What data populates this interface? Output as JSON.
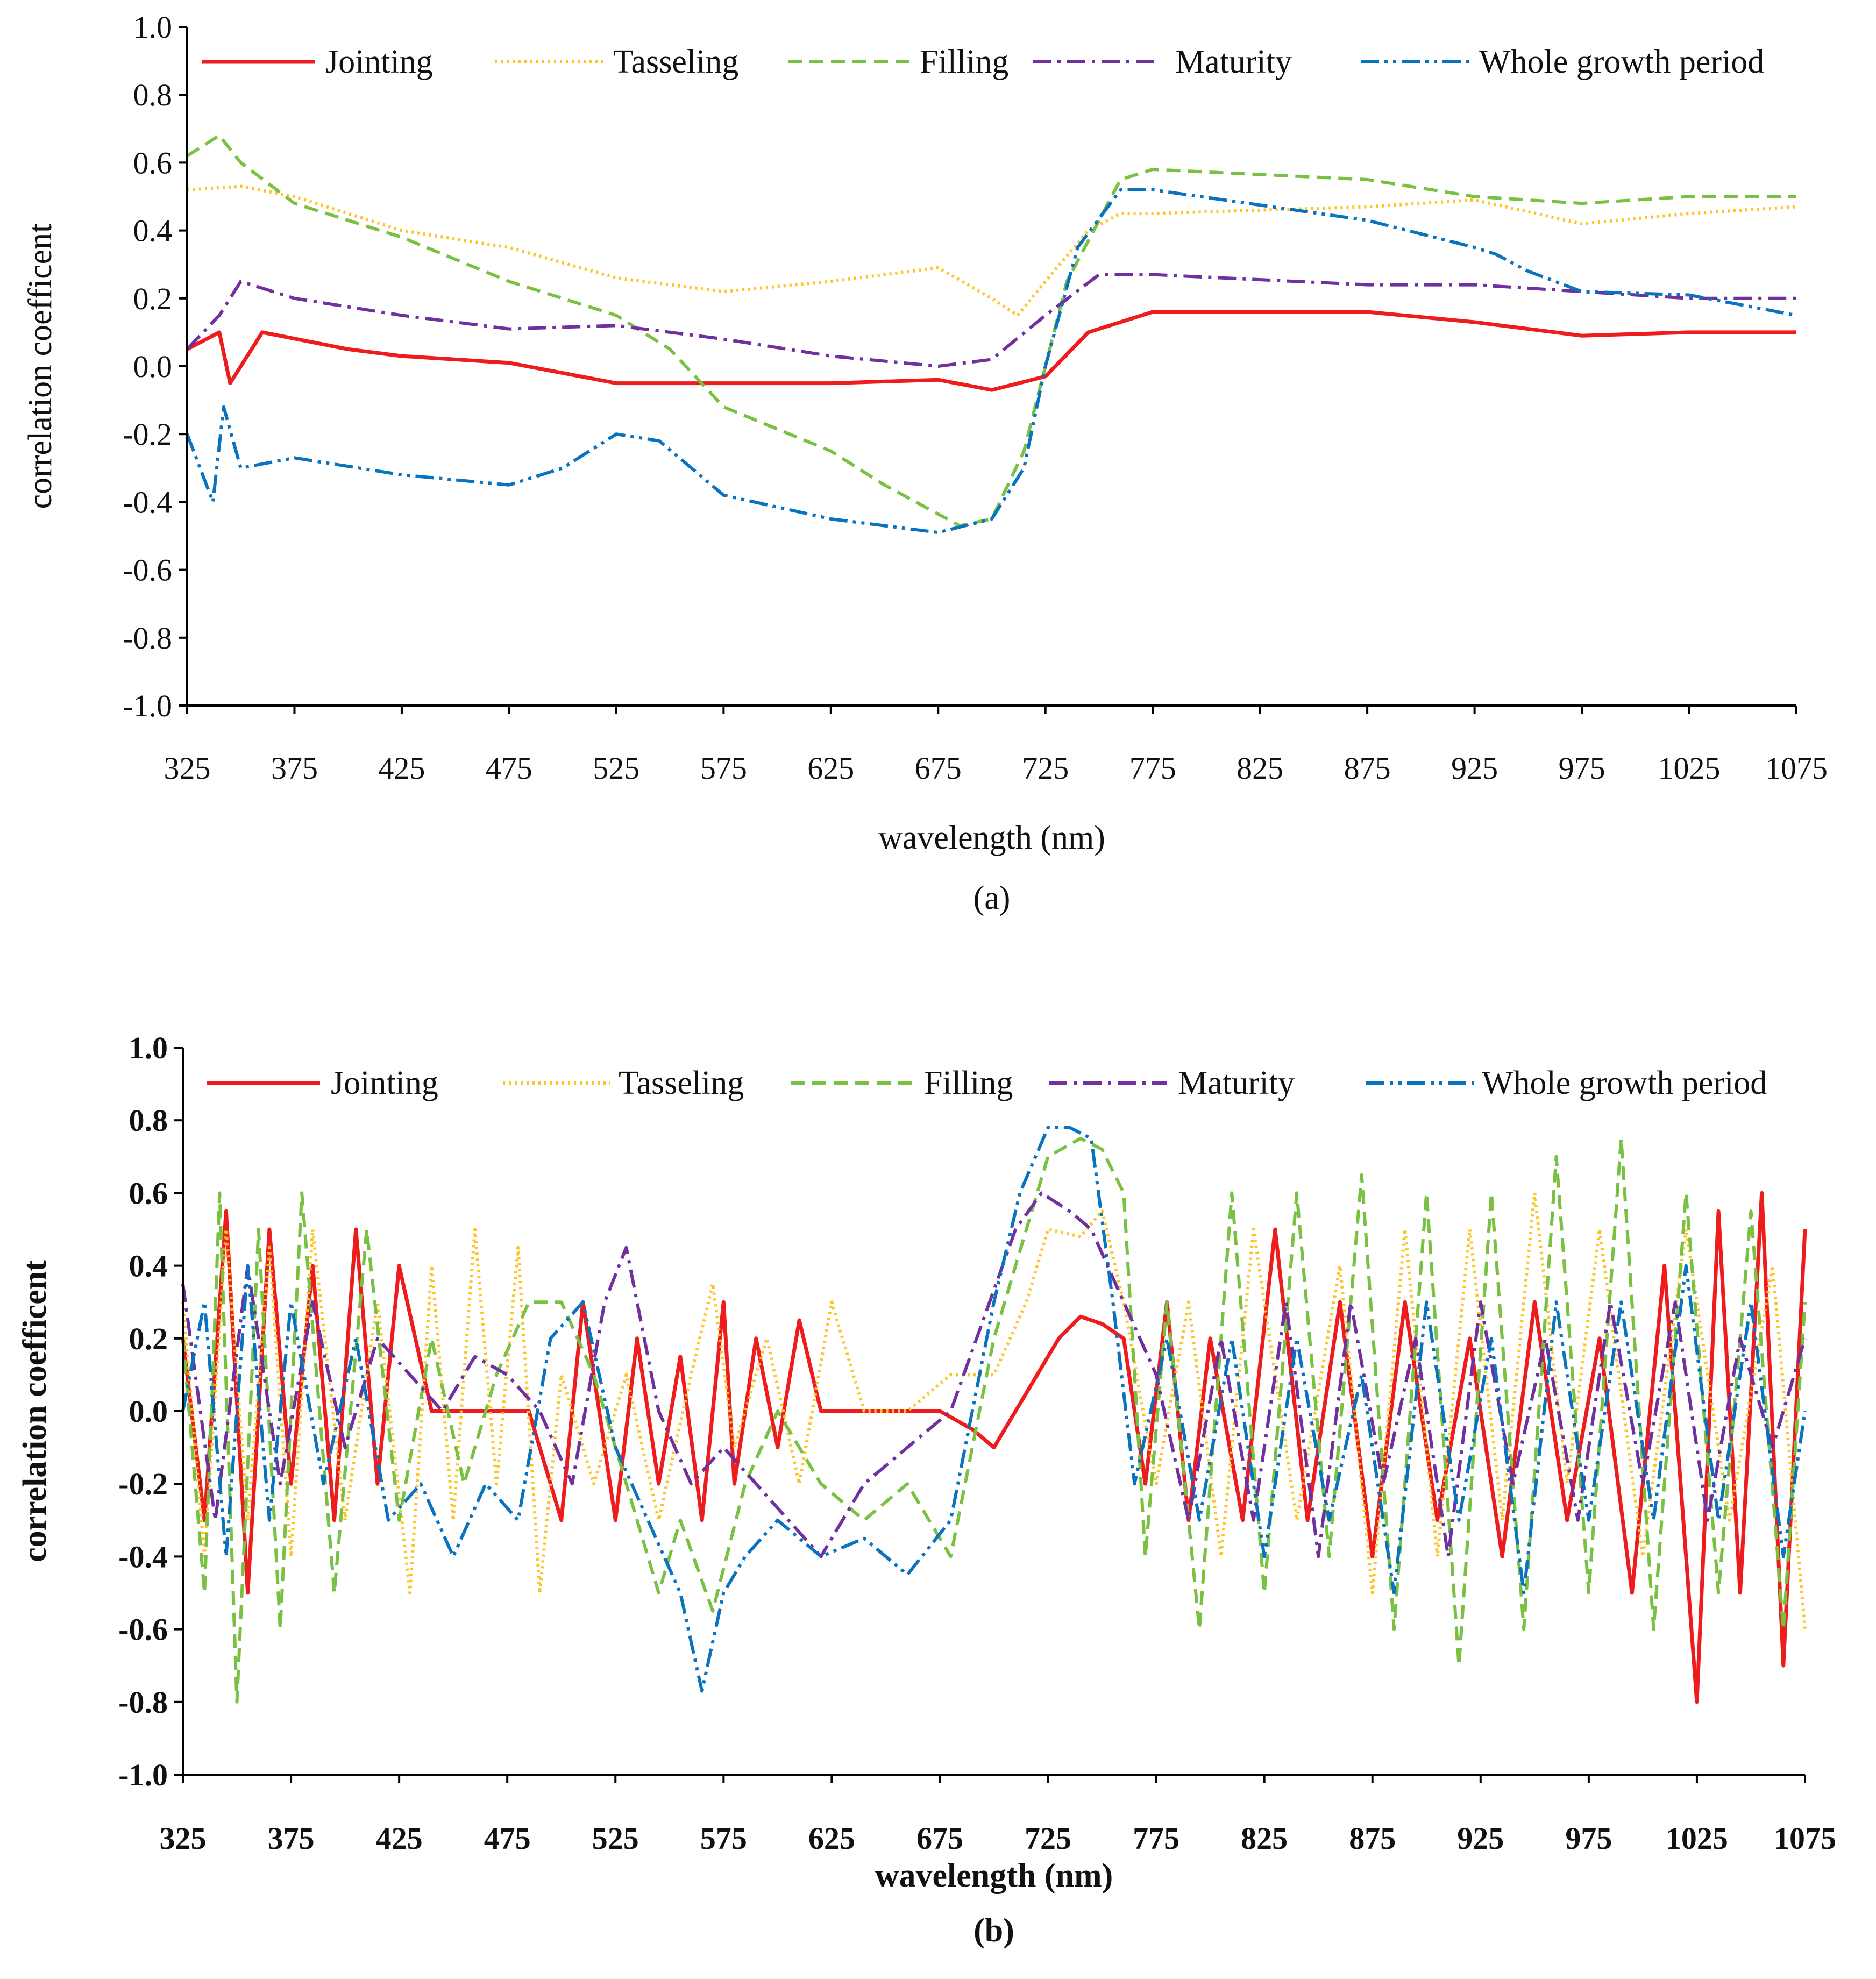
{
  "colors": {
    "jointing": "#ee1c1c",
    "tasseling": "#fdc422",
    "filling": "#7ac143",
    "maturity": "#7030a0",
    "whole": "#0a73c0",
    "axis": "#000000"
  },
  "chart_data": [
    {
      "id": "a",
      "type": "line",
      "caption": "(a)",
      "xlabel": "wavelength (nm)",
      "ylabel": "correlation  coefficent",
      "xlim": [
        325,
        1075
      ],
      "ylim": [
        -1.0,
        1.0
      ],
      "xticks": [
        "325",
        "375",
        "425",
        "475",
        "525",
        "575",
        "625",
        "675",
        "725",
        "775",
        "825",
        "875",
        "925",
        "975",
        "1025",
        "1075"
      ],
      "yticks": [
        "1.0",
        "0.8",
        "0.6",
        "0.4",
        "0.2",
        "0.0",
        "-0.2",
        "-0.4",
        "-0.6",
        "-0.8",
        "-1.0"
      ],
      "legend": [
        "Jointing",
        "Tasseling",
        "Filling",
        "Maturity",
        "Whole growth period"
      ],
      "series": [
        {
          "key": "jointing",
          "name": "Jointing",
          "x": [
            325,
            340,
            345,
            360,
            400,
            425,
            475,
            500,
            525,
            575,
            625,
            675,
            700,
            725,
            745,
            775,
            875,
            925,
            975,
            1025,
            1075
          ],
          "y": [
            0.05,
            0.1,
            -0.05,
            0.1,
            0.05,
            0.03,
            0.01,
            -0.02,
            -0.05,
            -0.05,
            -0.05,
            -0.04,
            -0.07,
            -0.03,
            0.1,
            0.16,
            0.16,
            0.13,
            0.09,
            0.1,
            0.1
          ]
        },
        {
          "key": "tasseling",
          "name": "Tasseling",
          "x": [
            325,
            350,
            375,
            425,
            475,
            525,
            575,
            625,
            675,
            700,
            712,
            725,
            745,
            760,
            775,
            875,
            925,
            975,
            1025,
            1075
          ],
          "y": [
            0.52,
            0.53,
            0.5,
            0.4,
            0.35,
            0.26,
            0.22,
            0.25,
            0.29,
            0.2,
            0.15,
            0.25,
            0.4,
            0.45,
            0.45,
            0.47,
            0.49,
            0.42,
            0.45,
            0.47
          ]
        },
        {
          "key": "filling",
          "name": "Filling",
          "x": [
            325,
            340,
            350,
            375,
            425,
            475,
            525,
            550,
            575,
            625,
            650,
            685,
            700,
            715,
            735,
            760,
            775,
            875,
            925,
            975,
            1025,
            1075
          ],
          "y": [
            0.62,
            0.68,
            0.6,
            0.48,
            0.38,
            0.25,
            0.15,
            0.05,
            -0.12,
            -0.25,
            -0.35,
            -0.47,
            -0.45,
            -0.25,
            0.25,
            0.55,
            0.58,
            0.55,
            0.5,
            0.48,
            0.5,
            0.5
          ]
        },
        {
          "key": "maturity",
          "name": "Maturity",
          "x": [
            325,
            340,
            350,
            375,
            425,
            475,
            525,
            575,
            625,
            675,
            700,
            725,
            750,
            775,
            875,
            925,
            975,
            1025,
            1075
          ],
          "y": [
            0.05,
            0.15,
            0.25,
            0.2,
            0.15,
            0.11,
            0.12,
            0.08,
            0.03,
            0.0,
            0.02,
            0.15,
            0.27,
            0.27,
            0.24,
            0.24,
            0.22,
            0.2,
            0.2
          ]
        },
        {
          "key": "whole",
          "name": "Whole growth period",
          "x": [
            325,
            337,
            342,
            350,
            375,
            425,
            475,
            500,
            525,
            545,
            575,
            625,
            675,
            700,
            715,
            725,
            740,
            760,
            775,
            875,
            925,
            935,
            950,
            975,
            1025,
            1075
          ],
          "y": [
            -0.2,
            -0.4,
            -0.12,
            -0.3,
            -0.27,
            -0.32,
            -0.35,
            -0.3,
            -0.2,
            -0.22,
            -0.38,
            -0.45,
            -0.49,
            -0.45,
            -0.3,
            0.0,
            0.35,
            0.52,
            0.52,
            0.43,
            0.35,
            0.33,
            0.28,
            0.22,
            0.21,
            0.15
          ]
        }
      ]
    },
    {
      "id": "b",
      "type": "line",
      "caption": "(b)",
      "xlabel": "wavelength (nm)",
      "ylabel": "correlation  coefficent",
      "xlim": [
        325,
        1075
      ],
      "ylim": [
        -1.0,
        1.0
      ],
      "xticks": [
        "325",
        "375",
        "425",
        "475",
        "525",
        "575",
        "625",
        "675",
        "725",
        "775",
        "825",
        "875",
        "925",
        "975",
        "1025",
        "1075"
      ],
      "yticks": [
        "1.0",
        "0.8",
        "0.6",
        "0.4",
        "0.2",
        "0.0",
        "-0.2",
        "-0.4",
        "-0.6",
        "-0.8",
        "-1.0"
      ],
      "legend": [
        "Jointing",
        "Tasseling",
        "Filling",
        "Maturity",
        "Whole growth period"
      ],
      "series": [
        {
          "key": "jointing",
          "name": "Jointing",
          "x": [
            325,
            335,
            345,
            355,
            365,
            375,
            385,
            395,
            405,
            415,
            425,
            440,
            455,
            470,
            485,
            500,
            510,
            525,
            535,
            545,
            555,
            565,
            575,
            580,
            590,
            600,
            610,
            620,
            640,
            660,
            675,
            690,
            700,
            710,
            720,
            730,
            740,
            750,
            760,
            770,
            780,
            790,
            800,
            815,
            830,
            845,
            860,
            875,
            890,
            905,
            920,
            935,
            950,
            965,
            980,
            995,
            1010,
            1025,
            1035,
            1045,
            1055,
            1065,
            1075
          ],
          "y": [
            0.2,
            -0.3,
            0.55,
            -0.5,
            0.5,
            -0.2,
            0.4,
            -0.3,
            0.5,
            -0.2,
            0.4,
            0.0,
            0.0,
            0.0,
            0.0,
            -0.3,
            0.3,
            -0.3,
            0.2,
            -0.2,
            0.15,
            -0.3,
            0.3,
            -0.2,
            0.2,
            -0.1,
            0.25,
            0.0,
            0.0,
            0.0,
            0.0,
            -0.05,
            -0.1,
            0.0,
            0.1,
            0.2,
            0.26,
            0.24,
            0.2,
            -0.2,
            0.3,
            -0.3,
            0.2,
            -0.3,
            0.5,
            -0.3,
            0.3,
            -0.4,
            0.3,
            -0.3,
            0.2,
            -0.4,
            0.3,
            -0.3,
            0.2,
            -0.5,
            0.4,
            -0.8,
            0.55,
            -0.5,
            0.6,
            -0.7,
            0.5
          ]
        },
        {
          "key": "tasseling",
          "name": "Tasseling",
          "x": [
            325,
            335,
            345,
            355,
            365,
            375,
            385,
            400,
            415,
            430,
            440,
            450,
            460,
            470,
            480,
            490,
            500,
            515,
            530,
            545,
            560,
            570,
            580,
            595,
            610,
            625,
            640,
            660,
            680,
            700,
            715,
            725,
            740,
            750,
            760,
            775,
            790,
            805,
            820,
            840,
            860,
            875,
            890,
            905,
            920,
            935,
            950,
            965,
            980,
            1000,
            1020,
            1040,
            1060,
            1075
          ],
          "y": [
            0.3,
            -0.4,
            0.5,
            -0.3,
            0.45,
            -0.4,
            0.5,
            -0.3,
            0.3,
            -0.5,
            0.4,
            -0.3,
            0.5,
            -0.2,
            0.45,
            -0.5,
            0.1,
            -0.2,
            0.1,
            -0.3,
            0.1,
            0.35,
            -0.1,
            0.2,
            -0.2,
            0.3,
            0.0,
            0.0,
            0.1,
            0.1,
            0.3,
            0.5,
            0.48,
            0.55,
            0.3,
            -0.2,
            0.3,
            -0.4,
            0.5,
            -0.3,
            0.4,
            -0.5,
            0.5,
            -0.4,
            0.5,
            -0.3,
            0.6,
            -0.2,
            0.5,
            -0.4,
            0.5,
            -0.3,
            0.4,
            -0.6
          ]
        },
        {
          "key": "filling",
          "name": "Filling",
          "x": [
            325,
            335,
            342,
            350,
            360,
            370,
            380,
            395,
            410,
            425,
            440,
            455,
            470,
            485,
            500,
            515,
            530,
            545,
            555,
            570,
            585,
            600,
            620,
            640,
            660,
            680,
            700,
            715,
            725,
            740,
            750,
            760,
            770,
            780,
            795,
            810,
            825,
            840,
            855,
            870,
            885,
            900,
            915,
            930,
            945,
            960,
            975,
            990,
            1005,
            1020,
            1035,
            1050,
            1065,
            1075
          ],
          "y": [
            0.2,
            -0.5,
            0.6,
            -0.8,
            0.5,
            -0.6,
            0.6,
            -0.5,
            0.5,
            -0.3,
            0.2,
            -0.2,
            0.1,
            0.3,
            0.3,
            0.1,
            -0.2,
            -0.5,
            -0.3,
            -0.55,
            -0.2,
            0.0,
            -0.2,
            -0.3,
            -0.2,
            -0.4,
            0.2,
            0.5,
            0.7,
            0.75,
            0.72,
            0.6,
            -0.4,
            0.3,
            -0.6,
            0.6,
            -0.5,
            0.6,
            -0.4,
            0.65,
            -0.6,
            0.6,
            -0.7,
            0.6,
            -0.6,
            0.7,
            -0.5,
            0.75,
            -0.6,
            0.6,
            -0.5,
            0.55,
            -0.6,
            0.3
          ]
        },
        {
          "key": "maturity",
          "name": "Maturity",
          "x": [
            325,
            340,
            355,
            370,
            385,
            400,
            415,
            430,
            445,
            460,
            475,
            490,
            505,
            520,
            530,
            545,
            560,
            575,
            590,
            605,
            620,
            640,
            660,
            680,
            695,
            710,
            722,
            735,
            745,
            760,
            775,
            790,
            805,
            820,
            835,
            850,
            865,
            880,
            895,
            910,
            925,
            940,
            955,
            970,
            985,
            1000,
            1015,
            1030,
            1045,
            1060,
            1075
          ],
          "y": [
            0.35,
            -0.3,
            0.4,
            -0.2,
            0.3,
            -0.1,
            0.2,
            0.1,
            0.0,
            0.15,
            0.1,
            0.0,
            -0.2,
            0.3,
            0.45,
            0.0,
            -0.2,
            -0.1,
            -0.2,
            -0.3,
            -0.4,
            -0.2,
            -0.1,
            0.0,
            0.25,
            0.5,
            0.6,
            0.55,
            0.5,
            0.3,
            0.1,
            -0.3,
            0.2,
            -0.3,
            0.3,
            -0.4,
            0.3,
            -0.2,
            0.2,
            -0.4,
            0.3,
            -0.2,
            0.2,
            -0.3,
            0.3,
            -0.2,
            0.3,
            -0.3,
            0.2,
            -0.1,
            0.2
          ]
        },
        {
          "key": "whole",
          "name": "Whole growth period",
          "x": [
            325,
            335,
            345,
            355,
            365,
            375,
            390,
            405,
            420,
            435,
            450,
            465,
            480,
            495,
            510,
            525,
            540,
            555,
            565,
            575,
            585,
            600,
            620,
            640,
            660,
            680,
            700,
            712,
            725,
            735,
            745,
            755,
            765,
            780,
            795,
            810,
            825,
            840,
            855,
            870,
            885,
            900,
            915,
            930,
            945,
            960,
            975,
            990,
            1005,
            1020,
            1035,
            1050,
            1065,
            1075
          ],
          "y": [
            0.0,
            0.3,
            -0.4,
            0.4,
            -0.3,
            0.3,
            -0.2,
            0.2,
            -0.3,
            -0.2,
            -0.4,
            -0.2,
            -0.3,
            0.2,
            0.3,
            -0.1,
            -0.3,
            -0.5,
            -0.77,
            -0.5,
            -0.4,
            -0.3,
            -0.4,
            -0.35,
            -0.45,
            -0.3,
            0.3,
            0.6,
            0.78,
            0.78,
            0.75,
            0.3,
            -0.2,
            0.2,
            -0.3,
            0.2,
            -0.4,
            0.2,
            -0.3,
            0.1,
            -0.5,
            0.3,
            -0.3,
            0.2,
            -0.5,
            0.3,
            -0.3,
            0.3,
            -0.3,
            0.4,
            -0.3,
            0.3,
            -0.4,
            0.0
          ]
        }
      ]
    }
  ]
}
